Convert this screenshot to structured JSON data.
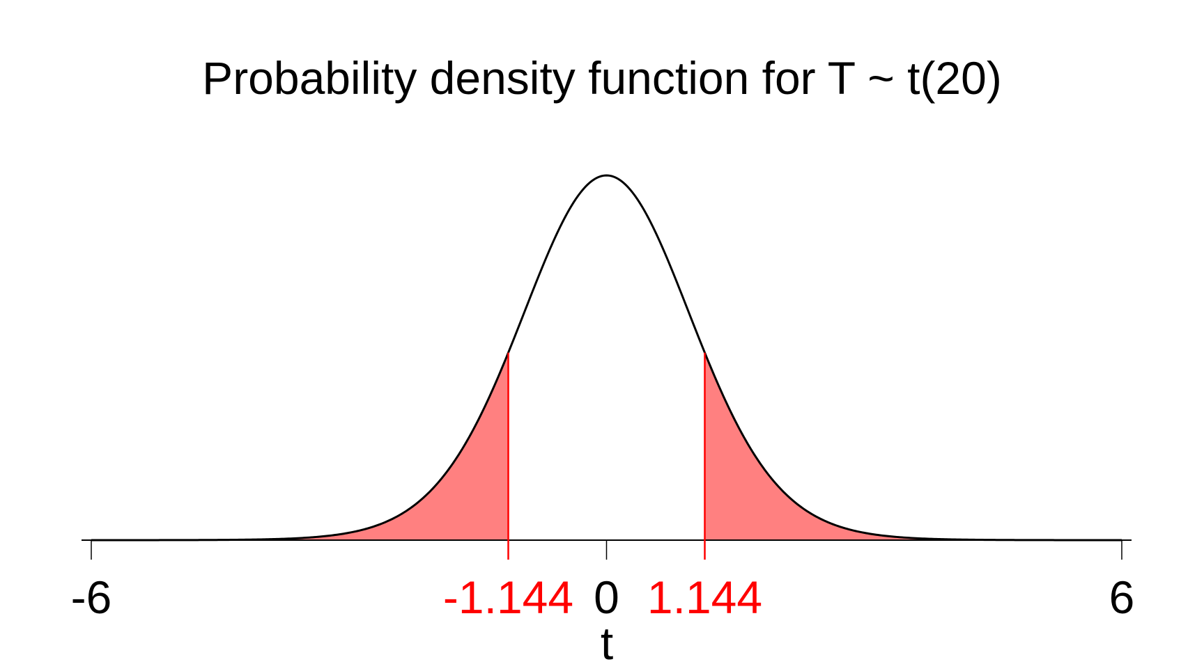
{
  "chart_data": {
    "type": "area",
    "title": "Probability density function for T ~ t(20)",
    "xlabel": "t",
    "ylabel": "",
    "distribution": {
      "family": "t",
      "df": 20
    },
    "xlim": [
      -6,
      6
    ],
    "critical_values": [
      -1.144,
      1.144
    ],
    "shaded_regions": [
      {
        "from": -6,
        "to": -1.144
      },
      {
        "from": 1.144,
        "to": 6
      }
    ],
    "ticks": [
      {
        "value": -6,
        "label": "-6",
        "color": "#000000"
      },
      {
        "value": -1.144,
        "label": "-1.144",
        "color": "#ff0000"
      },
      {
        "value": 0,
        "label": "0",
        "color": "#000000"
      },
      {
        "value": 1.144,
        "label": "1.144",
        "color": "#ff0000"
      },
      {
        "value": 6,
        "label": "6",
        "color": "#000000"
      }
    ],
    "grid": false,
    "legend": "none",
    "colors": {
      "curve": "#000000",
      "shade": "#ff8080",
      "critical": "#ff0000",
      "axis": "#000000"
    }
  }
}
